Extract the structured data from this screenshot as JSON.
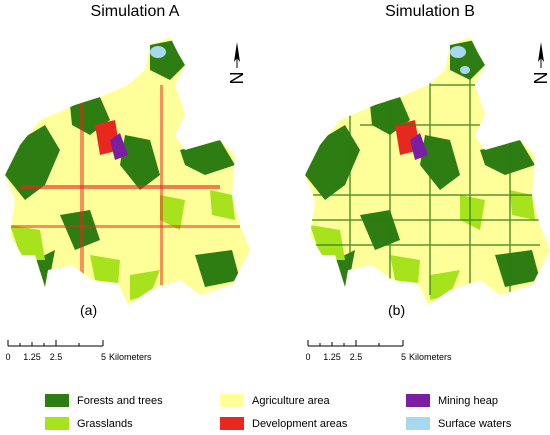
{
  "panels": [
    {
      "title": "Simulation A",
      "label": "(a)"
    },
    {
      "title": "Simulation B",
      "label": "(b)"
    }
  ],
  "scale": {
    "ticks": [
      "0",
      "1.25",
      "2.5",
      "5"
    ],
    "unit": "Kilometers"
  },
  "north_symbol": "N",
  "legend": [
    {
      "label": "Forests and trees",
      "color": "#2e7d12"
    },
    {
      "label": "Agriculture area",
      "color": "#ffff99"
    },
    {
      "label": "Mining heap",
      "color": "#7a1fa2"
    },
    {
      "label": "Grasslands",
      "color": "#a6e31c"
    },
    {
      "label": "Development areas",
      "color": "#e8281e"
    },
    {
      "label": "Surface waters",
      "color": "#a8d8ee"
    }
  ]
}
